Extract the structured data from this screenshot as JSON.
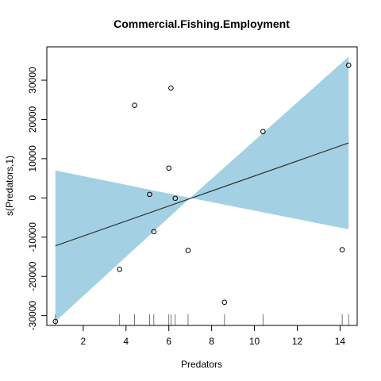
{
  "chart_data": {
    "type": "scatter",
    "title": "Commercial.Fishing.Employment",
    "xlabel": "Predators",
    "ylabel": "s(Predators,1)",
    "xlim": [
      0.3,
      14.8
    ],
    "ylim": [
      -32500,
      38500
    ],
    "x_ticks": [
      2,
      4,
      6,
      8,
      10,
      12,
      14
    ],
    "y_ticks": [
      -30000,
      -20000,
      -10000,
      0,
      10000,
      20000,
      30000
    ],
    "fit_line": {
      "x": [
        0.7,
        14.4
      ],
      "y": [
        -12200,
        14000
      ]
    },
    "confidence_band": {
      "x": [
        0.7,
        7.0,
        14.4
      ],
      "upper": [
        7000,
        0,
        36000
      ],
      "lower": [
        -31500,
        0,
        -8000
      ],
      "color": "#a3d1e3"
    },
    "points": {
      "x": [
        0.7,
        3.7,
        4.4,
        5.1,
        5.3,
        6.0,
        6.1,
        6.3,
        6.9,
        8.6,
        10.4,
        14.1,
        14.4
      ],
      "y": [
        -31500,
        -18200,
        23600,
        900,
        -8600,
        7600,
        28000,
        -100,
        -13400,
        -26600,
        16900,
        -13200,
        33800
      ]
    },
    "rug_x": [
      0.7,
      3.7,
      4.4,
      5.1,
      5.3,
      6.0,
      6.1,
      6.3,
      6.9,
      8.6,
      10.4,
      14.1,
      14.4
    ]
  }
}
